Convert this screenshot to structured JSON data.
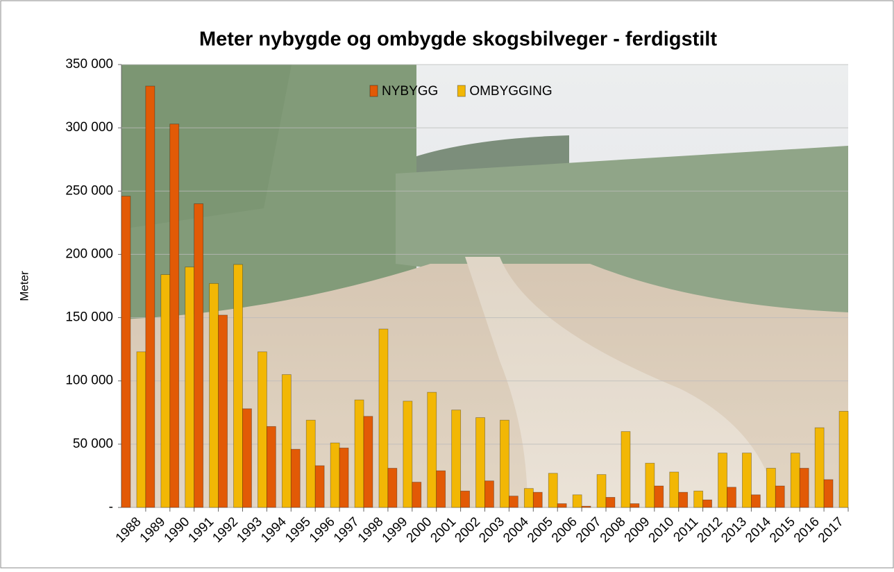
{
  "chart_data": {
    "type": "bar",
    "title": "Meter nybygde og ombygde skogsbilveger - ferdigstilt",
    "y_label": "Meter",
    "categories": [
      "1988",
      "1989",
      "1990",
      "1991",
      "1992",
      "1993",
      "1994",
      "1995",
      "1996",
      "1997",
      "1998",
      "1999",
      "2000",
      "2001",
      "2002",
      "2003",
      "2004",
      "2005",
      "2006",
      "2007",
      "2008",
      "2009",
      "2010",
      "2011",
      "2012",
      "2013",
      "2014",
      "2015",
      "2016",
      "2017"
    ],
    "series": [
      {
        "name": "NYBYGG",
        "color": "#e25a06",
        "values": [
          246000,
          333000,
          303000,
          240000,
          152000,
          78000,
          64000,
          46000,
          33000,
          47000,
          72000,
          31000,
          20000,
          29000,
          13000,
          21000,
          9000,
          12000,
          3000,
          1000,
          8000,
          3000,
          17000,
          12000,
          6000,
          16000,
          10000,
          17000,
          31000,
          22000
        ]
      },
      {
        "name": "OMBYGGING",
        "color": "#f2b705",
        "values": [
          123000,
          184000,
          190000,
          177000,
          192000,
          123000,
          105000,
          69000,
          51000,
          85000,
          141000,
          84000,
          91000,
          77000,
          71000,
          69000,
          15000,
          27000,
          10000,
          26000,
          60000,
          35000,
          28000,
          13000,
          43000,
          43000,
          31000,
          43000,
          63000,
          76000
        ]
      }
    ],
    "ylim": [
      0,
      350000
    ],
    "yticks": [
      {
        "value": 0,
        "label": "-"
      },
      {
        "value": 50000,
        "label": "50 000"
      },
      {
        "value": 100000,
        "label": "100 000"
      },
      {
        "value": 150000,
        "label": "150 000"
      },
      {
        "value": 200000,
        "label": "200 000"
      },
      {
        "value": 250000,
        "label": "250 000"
      },
      {
        "value": 300000,
        "label": "300 000"
      },
      {
        "value": 350000,
        "label": "350 000"
      }
    ],
    "grid": true,
    "legend": "top"
  }
}
